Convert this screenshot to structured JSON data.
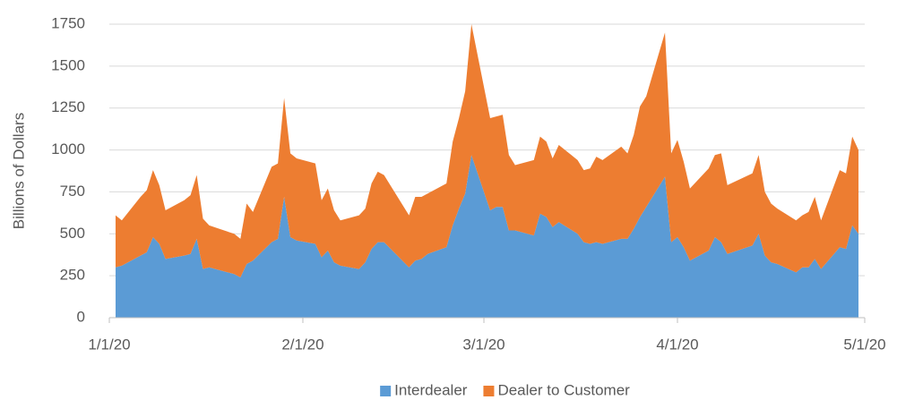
{
  "chart_data": {
    "type": "stacked_area",
    "y_label": "Billions of Dollars",
    "x": [
      "1/2/20",
      "1/3/20",
      "1/6/20",
      "1/7/20",
      "1/8/20",
      "1/9/20",
      "1/10/20",
      "1/13/20",
      "1/14/20",
      "1/15/20",
      "1/16/20",
      "1/17/20",
      "1/21/20",
      "1/22/20",
      "1/23/20",
      "1/24/20",
      "1/27/20",
      "1/28/20",
      "1/29/20",
      "1/30/20",
      "1/31/20",
      "2/3/20",
      "2/4/20",
      "2/5/20",
      "2/6/20",
      "2/7/20",
      "2/10/20",
      "2/11/20",
      "2/12/20",
      "2/13/20",
      "2/14/20",
      "2/18/20",
      "2/19/20",
      "2/20/20",
      "2/21/20",
      "2/24/20",
      "2/25/20",
      "2/26/20",
      "2/27/20",
      "2/28/20",
      "3/2/20",
      "3/3/20",
      "3/4/20",
      "3/5/20",
      "3/6/20",
      "3/9/20",
      "3/10/20",
      "3/11/20",
      "3/12/20",
      "3/13/20",
      "3/16/20",
      "3/17/20",
      "3/18/20",
      "3/19/20",
      "3/20/20",
      "3/23/20",
      "3/24/20",
      "3/25/20",
      "3/26/20",
      "3/27/20",
      "3/30/20",
      "3/31/20",
      "4/1/20",
      "4/2/20",
      "4/3/20",
      "4/6/20",
      "4/7/20",
      "4/8/20",
      "4/9/20",
      "4/13/20",
      "4/14/20",
      "4/15/20",
      "4/16/20",
      "4/17/20",
      "4/20/20",
      "4/21/20",
      "4/22/20",
      "4/23/20",
      "4/24/20",
      "4/27/20",
      "4/28/20",
      "4/29/20",
      "4/30/20"
    ],
    "series": [
      {
        "name": "Interdealer",
        "color": "#5b9bd5",
        "values": [
          300,
          310,
          370,
          390,
          480,
          440,
          350,
          370,
          380,
          470,
          290,
          300,
          260,
          240,
          320,
          340,
          450,
          470,
          720,
          480,
          460,
          440,
          360,
          400,
          330,
          310,
          290,
          330,
          410,
          450,
          450,
          300,
          340,
          350,
          380,
          420,
          550,
          650,
          740,
          970,
          640,
          660,
          660,
          520,
          520,
          490,
          620,
          600,
          540,
          570,
          500,
          450,
          440,
          450,
          440,
          470,
          470,
          530,
          600,
          660,
          840,
          450,
          480,
          420,
          340,
          400,
          480,
          450,
          380,
          430,
          500,
          370,
          330,
          320,
          270,
          300,
          300,
          350,
          290,
          420,
          410,
          550,
          500
        ]
      },
      {
        "name": "Dealer to Customer",
        "color": "#ed7d31",
        "values": [
          310,
          270,
          350,
          370,
          400,
          350,
          290,
          330,
          350,
          380,
          300,
          250,
          240,
          230,
          360,
          290,
          450,
          450,
          590,
          500,
          490,
          480,
          340,
          370,
          310,
          270,
          320,
          320,
          390,
          420,
          400,
          310,
          380,
          370,
          360,
          380,
          500,
          540,
          610,
          780,
          550,
          540,
          550,
          450,
          390,
          450,
          460,
          450,
          410,
          460,
          440,
          430,
          450,
          510,
          500,
          550,
          510,
          560,
          660,
          660,
          860,
          530,
          580,
          510,
          430,
          490,
          490,
          530,
          410,
          430,
          470,
          380,
          350,
          330,
          310,
          310,
          330,
          370,
          290,
          460,
          450,
          530,
          500
        ]
      }
    ],
    "xlim": [
      "1/1/20",
      "5/1/20"
    ],
    "xticks": [
      "1/1/20",
      "2/1/20",
      "3/1/20",
      "4/1/20",
      "5/1/20"
    ],
    "ylim": [
      0,
      1750
    ],
    "yticks": [
      0,
      250,
      500,
      750,
      1000,
      1250,
      1500,
      1750
    ],
    "grid": true,
    "legend": "bottom"
  }
}
